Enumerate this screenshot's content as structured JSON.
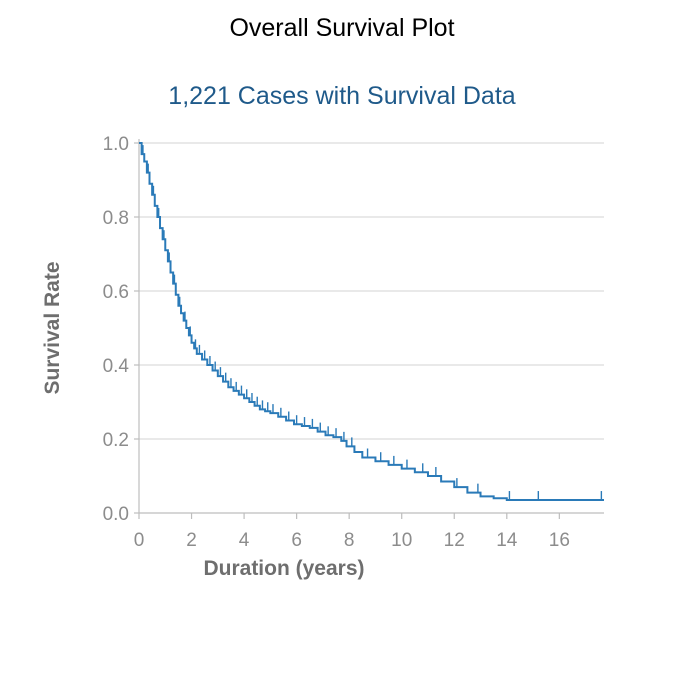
{
  "chart_data": {
    "type": "line",
    "title": "Overall Survival Plot",
    "subtitle": "1,221 Cases with Survival Data",
    "xlabel": "Duration (years)",
    "ylabel": "Survival Rate",
    "xlim": [
      0,
      17.7
    ],
    "ylim": [
      0,
      1.0
    ],
    "x_ticks": [
      0,
      2,
      4,
      6,
      8,
      10,
      12,
      14,
      16
    ],
    "x_tick_labels": [
      "0",
      "2",
      "4",
      "6",
      "8",
      "10",
      "12",
      "14",
      "16"
    ],
    "y_ticks": [
      0,
      0.2,
      0.4,
      0.6,
      0.8,
      1.0
    ],
    "y_tick_labels": [
      "0.0",
      "0.2",
      "0.4",
      "0.6",
      "0.8",
      "1.0"
    ],
    "grid": true,
    "legend": "none",
    "series": [
      {
        "step": true,
        "color": "#2a7ab8",
        "x": [
          0,
          0.1,
          0.2,
          0.3,
          0.4,
          0.5,
          0.6,
          0.7,
          0.8,
          0.9,
          1.0,
          1.1,
          1.2,
          1.3,
          1.4,
          1.5,
          1.6,
          1.7,
          1.8,
          1.9,
          2.0,
          2.1,
          2.2,
          2.4,
          2.6,
          2.8,
          3.0,
          3.2,
          3.4,
          3.6,
          3.8,
          4.0,
          4.2,
          4.4,
          4.6,
          4.8,
          5.0,
          5.3,
          5.6,
          5.9,
          6.2,
          6.5,
          6.8,
          7.1,
          7.4,
          7.7,
          7.9,
          8.2,
          8.5,
          9.0,
          9.5,
          10.0,
          10.5,
          11.0,
          11.5,
          12.0,
          12.5,
          13.0,
          13.5,
          14.0,
          14.5,
          15.0,
          15.5,
          16.0,
          17.7
        ],
        "y": [
          1.0,
          0.97,
          0.95,
          0.92,
          0.89,
          0.86,
          0.83,
          0.8,
          0.77,
          0.74,
          0.71,
          0.68,
          0.65,
          0.62,
          0.59,
          0.56,
          0.54,
          0.52,
          0.5,
          0.48,
          0.46,
          0.445,
          0.43,
          0.415,
          0.4,
          0.385,
          0.37,
          0.355,
          0.34,
          0.33,
          0.32,
          0.31,
          0.3,
          0.29,
          0.28,
          0.275,
          0.27,
          0.26,
          0.25,
          0.24,
          0.235,
          0.23,
          0.22,
          0.21,
          0.205,
          0.195,
          0.18,
          0.165,
          0.15,
          0.14,
          0.13,
          0.12,
          0.11,
          0.1,
          0.085,
          0.07,
          0.055,
          0.045,
          0.04,
          0.035,
          0.035,
          0.035,
          0.035,
          0.035,
          0.035
        ],
        "censored_x": [
          0.15,
          0.35,
          0.55,
          0.75,
          0.95,
          1.15,
          1.35,
          1.55,
          1.75,
          1.95,
          2.15,
          2.3,
          2.5,
          2.7,
          2.9,
          3.1,
          3.3,
          3.5,
          3.7,
          3.9,
          4.1,
          4.3,
          4.5,
          4.7,
          4.9,
          5.1,
          5.4,
          5.7,
          6.0,
          6.3,
          6.6,
          6.9,
          7.2,
          7.5,
          7.8,
          8.1,
          8.7,
          9.2,
          9.7,
          10.2,
          10.8,
          11.3,
          12.1,
          12.9,
          14.1,
          15.2,
          17.6
        ]
      }
    ]
  }
}
